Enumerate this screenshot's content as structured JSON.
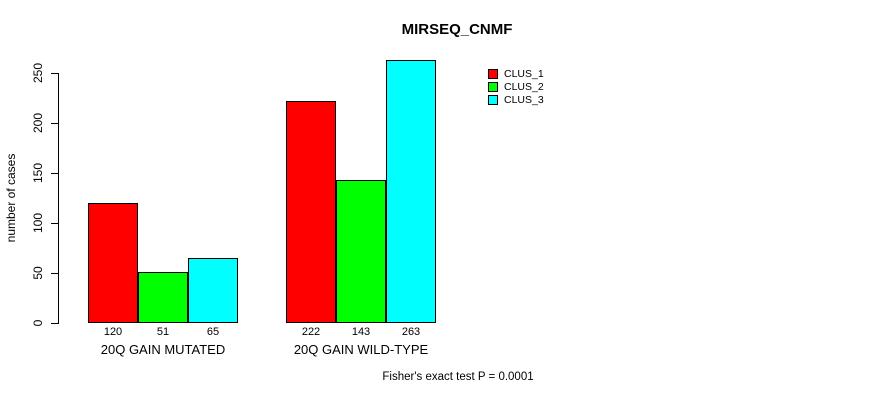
{
  "chart_data": {
    "type": "bar",
    "title": "MIRSEQ_CNMF",
    "ylabel": "number of cases",
    "xlabel": "",
    "ylim": [
      0,
      263
    ],
    "yticks": [
      0,
      50,
      100,
      150,
      200,
      250
    ],
    "categories": [
      "20Q GAIN MUTATED",
      "20Q GAIN WILD-TYPE"
    ],
    "series": [
      {
        "name": "CLUS_1",
        "color": "#ff0000",
        "values": [
          120,
          222
        ]
      },
      {
        "name": "CLUS_2",
        "color": "#00ff00",
        "values": [
          51,
          143
        ]
      },
      {
        "name": "CLUS_3",
        "color": "#00ffff",
        "values": [
          65,
          263
        ]
      }
    ],
    "bar_value_labels": [
      [
        120,
        51,
        65
      ],
      [
        222,
        143,
        263
      ]
    ],
    "legend_position": "top-right",
    "grid": false,
    "annotation": "Fisher's exact test P = 0.0001"
  }
}
